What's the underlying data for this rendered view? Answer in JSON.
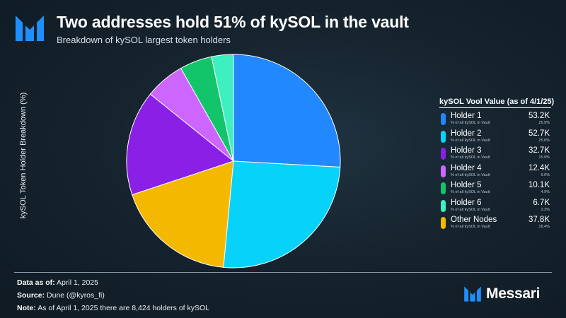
{
  "header": {
    "title": "Two addresses hold 51% of kySOL in the vault",
    "subtitle": "Breakdown of kySOL largest token holders"
  },
  "chart_data": {
    "type": "pie",
    "ylabel": "kySOL Token Holder Breakdown (%)",
    "legend_title": "kySOL Vool Value (as of 4/1/25)",
    "legend_sub_label": "% of all kySOL in Vault",
    "legend_position": "right",
    "slices": [
      {
        "name": "Holder 1",
        "value": 25.9,
        "amount": "53.2K",
        "pct_label": "25.9%",
        "color": "#2188ff"
      },
      {
        "name": "Holder 2",
        "value": 25.6,
        "amount": "52.7K",
        "pct_label": "25.6%",
        "color": "#06d2fa"
      },
      {
        "name": "Other Nodes",
        "value": 18.4,
        "amount": "37.8K",
        "pct_label": "18.4%",
        "color": "#f5b800"
      },
      {
        "name": "Holder 3",
        "value": 15.9,
        "amount": "32.7K",
        "pct_label": "15.9%",
        "color": "#8a1fe6"
      },
      {
        "name": "Holder 4",
        "value": 6.0,
        "amount": "12.4K",
        "pct_label": "6.0%",
        "color": "#cc66ff"
      },
      {
        "name": "Holder 5",
        "value": 4.9,
        "amount": "10.1K",
        "pct_label": "4.9%",
        "color": "#12c46a"
      },
      {
        "name": "Holder 6",
        "value": 3.3,
        "amount": "6.7K",
        "pct_label": "3.3%",
        "color": "#3ef0c0"
      }
    ],
    "legend_order": [
      0,
      1,
      3,
      4,
      5,
      6,
      2
    ]
  },
  "footer": {
    "data_as_of_label": "Data as of:",
    "data_as_of_value": "April 1, 2025",
    "source_label": "Source:",
    "source_value": "Dune (@kyros_fi)",
    "note_label": "Note:",
    "note_value": "As of April 1, 2025 there are 8,424 holders of kySOL"
  },
  "brand": {
    "name": "Messari"
  }
}
